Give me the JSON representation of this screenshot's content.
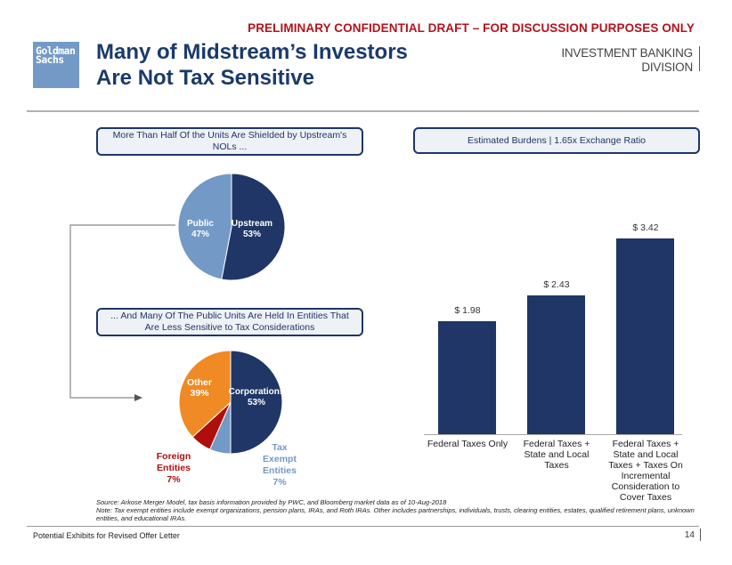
{
  "header": {
    "confidential_banner": "PRELIMINARY CONFIDENTIAL DRAFT – FOR DISCUSSION PURPOSES ONLY",
    "logo_line1": "Goldman",
    "logo_line2": "Sachs",
    "title": "Many of Midstream’s Investors Are Not Tax Sensitive",
    "division_line1": "INVESTMENT BANKING",
    "division_line2": "DIVISION"
  },
  "colors": {
    "navy": "#1f3666",
    "light_blue": "#7399c6",
    "orange": "#f08a24",
    "dark_red": "#b00d0d",
    "confidential_red": "#b5121b"
  },
  "left_panel": {
    "callout_top": "More Than Half Of the Units Are Shielded by Upstream's NOLs ...",
    "callout_bottom": "... And Many Of The Public Units Are Held In Entities That Are Less Sensitive to Tax Considerations"
  },
  "right_panel": {
    "callout": "Estimated Burdens | 1.65x Exchange Ratio"
  },
  "chart_data": [
    {
      "type": "pie",
      "title": "More Than Half Of the Units Are Shielded by Upstream's NOLs ...",
      "slices": [
        {
          "label": "Upstream",
          "value": 53,
          "display": "53%",
          "color": "#1f3666"
        },
        {
          "label": "Public",
          "value": 47,
          "display": "47%",
          "color": "#7399c6"
        }
      ]
    },
    {
      "type": "pie",
      "title": "... And Many Of The Public Units Are Held In Entities That Are Less Sensitive to Tax Considerations",
      "slices": [
        {
          "label": "Corporations",
          "value": 53,
          "display": "53%",
          "color": "#1f3666"
        },
        {
          "label": "Tax Exempt Entities",
          "value": 7,
          "display": "7%",
          "color": "#7399c6"
        },
        {
          "label": "Foreign Entities",
          "value": 7,
          "display": "7%",
          "color": "#b00d0d"
        },
        {
          "label": "Other",
          "value": 39,
          "display": "39%",
          "color": "#f08a24"
        }
      ]
    },
    {
      "type": "bar",
      "title": "Estimated Burdens | 1.65x Exchange Ratio",
      "categories": [
        "Federal Taxes Only",
        "Federal Taxes + State and Local Taxes",
        "Federal Taxes + State and Local Taxes + Taxes On Incremental Consideration to Cover Taxes"
      ],
      "category_lines": [
        [
          "Federal Taxes Only"
        ],
        [
          "Federal Taxes +",
          "State and Local",
          "Taxes"
        ],
        [
          "Federal Taxes +",
          "State and Local",
          "Taxes + Taxes On",
          "Incremental",
          "Consideration to",
          "Cover Taxes"
        ]
      ],
      "values": [
        1.98,
        2.43,
        3.42
      ],
      "value_labels": [
        "$ 1.98",
        "$ 2.43",
        "$ 3.42"
      ],
      "ylim": [
        0,
        3.42
      ],
      "xlabel": "",
      "ylabel": "",
      "grid": false,
      "color": "#1f3666"
    }
  ],
  "pie_labels": {
    "upstream_name": "Upstream",
    "upstream_pct": "53%",
    "public_name": "Public",
    "public_pct": "47%",
    "corporations_name": "Corporations",
    "corporations_pct": "53%",
    "other_name": "Other",
    "other_pct": "39%",
    "foreign_line1": "Foreign",
    "foreign_line2": "Entities",
    "foreign_pct": "7%",
    "taxexempt_line1": "Tax",
    "taxexempt_line2": "Exempt",
    "taxexempt_line3": "Entities",
    "taxexempt_pct": "7%"
  },
  "footnotes": {
    "source": "Source: Arkose Merger Model, tax basis information provided by PWC, and Bloomberg market data as of 10-Aug-2018",
    "note": "Note: Tax exempt entities include exempt organizations, pension plans, IRAs, and Roth IRAs. Other includes partnerships, individuals, trusts, clearing entities, estates, qualified retirement plans, unknown entities, and educational IRAs."
  },
  "footer": {
    "left": "Potential Exhibits for Revised Offer Letter",
    "page": "14"
  }
}
